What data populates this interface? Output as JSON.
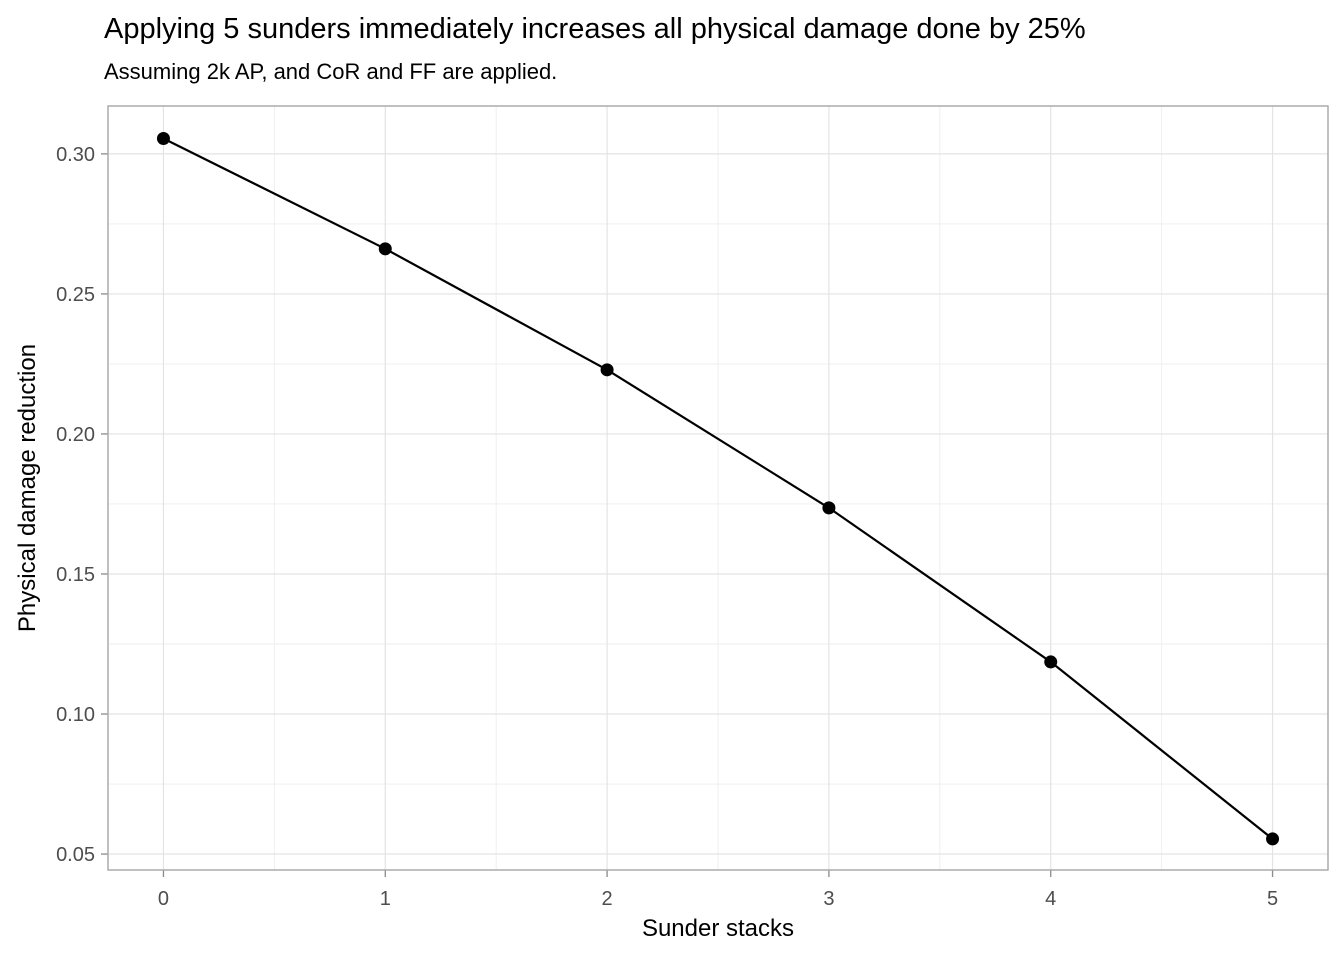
{
  "chart_data": {
    "type": "line",
    "title": "Applying 5 sunders immediately increases all physical damage done by 25%",
    "subtitle": "Assuming 2k AP, and CoR and FF are applied.",
    "xlabel": "Sunder stacks",
    "ylabel": "Physical damage reduction",
    "x": [
      0,
      1,
      2,
      3,
      4,
      5
    ],
    "y": [
      0.3055,
      0.2661,
      0.2229,
      0.1736,
      0.1186,
      0.0554
    ],
    "xlim": [
      -0.25,
      5.25
    ],
    "ylim": [
      0.0443,
      0.3171
    ],
    "x_ticks": [
      0,
      1,
      2,
      3,
      4,
      5
    ],
    "x_tick_labels": [
      "0",
      "1",
      "2",
      "3",
      "4",
      "5"
    ],
    "y_ticks": [
      0.05,
      0.1,
      0.15,
      0.2,
      0.25,
      0.3
    ],
    "y_tick_labels": [
      "0.05",
      "0.10",
      "0.15",
      "0.20",
      "0.25",
      "0.30"
    ],
    "x_minor_gridlines": [
      0.5,
      1.5,
      2.5,
      3.5,
      4.5
    ],
    "y_minor_gridlines": [
      0.075,
      0.125,
      0.175,
      0.225,
      0.275
    ],
    "grid": true,
    "legend_position": "none",
    "colors": {
      "line": "#000000",
      "point": "#000000",
      "background": "#ffffff",
      "panel_background": "#ffffff",
      "panel_border": "#ababab",
      "grid_major": "#e3e3e3",
      "grid_minor": "#eeeeee",
      "tick_mark": "#8a8a8a",
      "tick_label": "#4d4d4d",
      "text": "#000000"
    }
  }
}
